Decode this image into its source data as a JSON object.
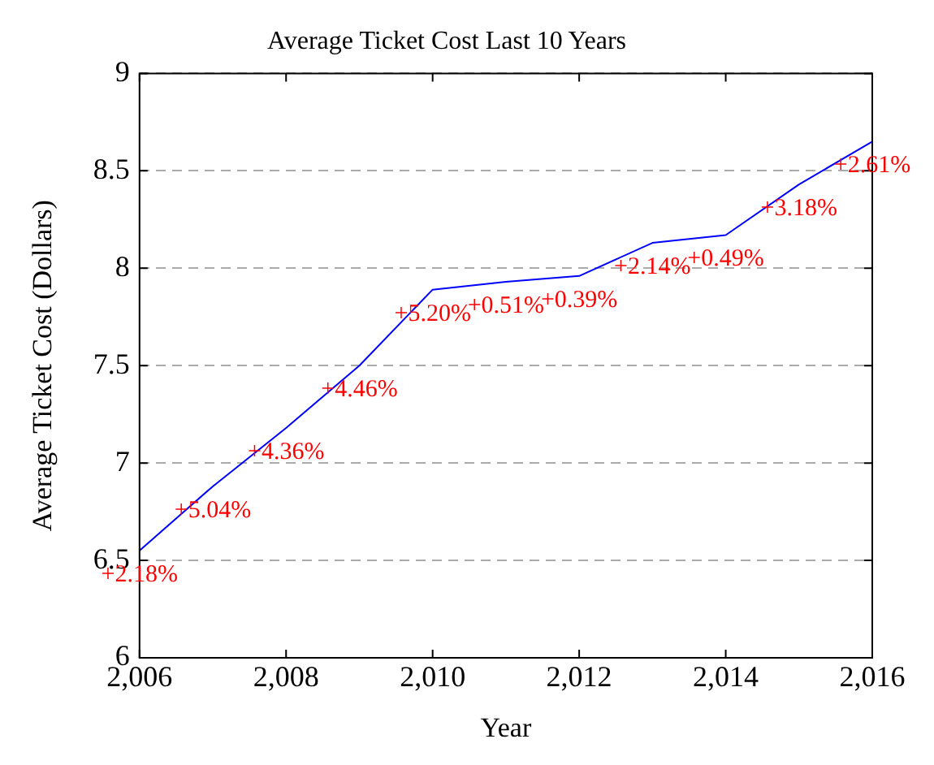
{
  "chart_data": {
    "type": "line",
    "title": "Average Ticket Cost Last 10 Years",
    "xlabel": "Year",
    "ylabel": "Average Ticket Cost (Dollars)",
    "x": [
      2006,
      2007,
      2008,
      2009,
      2010,
      2011,
      2012,
      2013,
      2014,
      2015,
      2016
    ],
    "series": [
      {
        "color": "#0000ff",
        "values": [
          6.55,
          6.88,
          7.18,
          7.5,
          7.89,
          7.93,
          7.96,
          8.13,
          8.17,
          8.43,
          8.65
        ]
      }
    ],
    "xlim": [
      2006,
      2016
    ],
    "xticks": [
      {
        "value": 2006,
        "label": "2,006"
      },
      {
        "value": 2008,
        "label": "2,008"
      },
      {
        "value": 2010,
        "label": "2,010"
      },
      {
        "value": 2012,
        "label": "2,012"
      },
      {
        "value": 2014,
        "label": "2,014"
      },
      {
        "value": 2016,
        "label": "2,016"
      }
    ],
    "ylim": [
      6,
      9
    ],
    "yticks": [
      6,
      6.5,
      7,
      7.5,
      8,
      8.5,
      9
    ],
    "grid": "y",
    "legend": false,
    "marker": "none",
    "line_style": "solid",
    "annotations": [
      {
        "text": "+2.18%",
        "x": 2006,
        "y": 6.55
      },
      {
        "text": "+5.04%",
        "x": 2007,
        "y": 6.88
      },
      {
        "text": "+4.36%",
        "x": 2008,
        "y": 7.18
      },
      {
        "text": "+4.46%",
        "x": 2009,
        "y": 7.5
      },
      {
        "text": "+5.20%",
        "x": 2010,
        "y": 7.89
      },
      {
        "text": "+0.51%",
        "x": 2011,
        "y": 7.93
      },
      {
        "text": "+0.39%",
        "x": 2012,
        "y": 7.96
      },
      {
        "text": "+2.14%",
        "x": 2013,
        "y": 8.13
      },
      {
        "text": "+0.49%",
        "x": 2014,
        "y": 8.17
      },
      {
        "text": "+3.18%",
        "x": 2015,
        "y": 8.43
      },
      {
        "text": "+2.61%",
        "x": 2016,
        "y": 8.65
      }
    ]
  }
}
